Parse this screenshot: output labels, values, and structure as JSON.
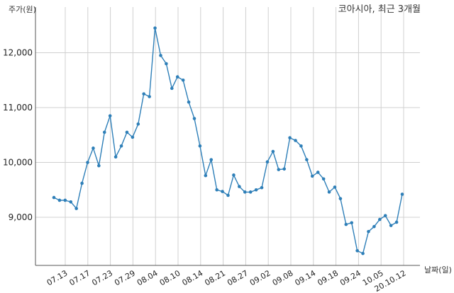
{
  "chart_data": {
    "type": "line",
    "title": "코아시아, 최근 3개월",
    "xlabel": "날짜(일)",
    "ylabel": "주가(원)",
    "ylim": [
      8300,
      12800
    ],
    "yticks": [
      9000,
      10000,
      11000,
      12000
    ],
    "ytick_labels": [
      "9,000",
      "10,000",
      "11,000",
      "12,000"
    ],
    "xtick_labels": [
      "07.13",
      "07.17",
      "07.23",
      "07.29",
      "08.04",
      "08.10",
      "08.14",
      "08.21",
      "08.27",
      "09.02",
      "09.08",
      "09.14",
      "09.18",
      "09.24",
      "10.05",
      "20.10.12"
    ],
    "grid": true,
    "series": [
      {
        "color": "#2e7fb8",
        "values": [
          9360,
          9310,
          9310,
          9280,
          9160,
          9620,
          10000,
          10260,
          9940,
          10550,
          10850,
          10100,
          10300,
          10550,
          10460,
          10700,
          11250,
          11200,
          12450,
          11950,
          11800,
          11350,
          11560,
          11500,
          11100,
          10800,
          10300,
          9760,
          10050,
          9500,
          9470,
          9400,
          9770,
          9560,
          9460,
          9460,
          9500,
          9540,
          10010,
          10200,
          9870,
          9880,
          10450,
          10400,
          10300,
          10050,
          9750,
          9820,
          9700,
          9460,
          9550,
          9340,
          8870,
          8900,
          8390,
          8340,
          8740,
          8830,
          8960,
          9030,
          8850,
          8910,
          9420
        ]
      }
    ]
  }
}
